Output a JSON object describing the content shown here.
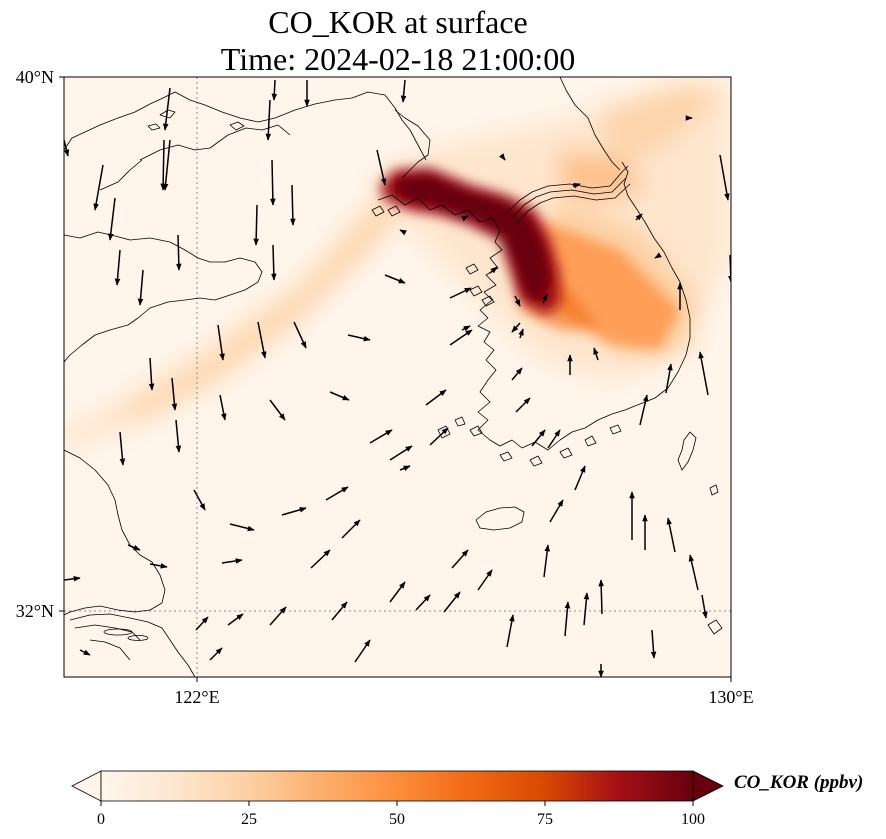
{
  "title_line1": "CO_KOR at surface",
  "title_line2": "Time: 2024-02-18 21:00:00",
  "map": {
    "lon_range": [
      119,
      130
    ],
    "lat_range": [
      31,
      40
    ],
    "lon_ticks": [
      {
        "value": 122,
        "label": "122°E"
      },
      {
        "value": 130,
        "label": "130°E"
      }
    ],
    "lat_ticks": [
      {
        "value": 40,
        "label": "40°N"
      },
      {
        "value": 32,
        "label": "32°N"
      }
    ],
    "gridlines": "dotted",
    "features": [
      "coastline-china",
      "coastline-korea",
      "jeju-island",
      "tsushima-island",
      "wind-vectors"
    ]
  },
  "colorbar": {
    "label": "CO_KOR (ppbv)",
    "ticks": [
      "0",
      "25",
      "50",
      "75",
      "100"
    ],
    "min": 0,
    "max": 100,
    "extend": "both",
    "colors": [
      "#fff5eb",
      "#fee6ce",
      "#fdd0a2",
      "#fdae6b",
      "#fd8d3c",
      "#f16913",
      "#d94801",
      "#a50f15",
      "#67000d"
    ]
  }
}
